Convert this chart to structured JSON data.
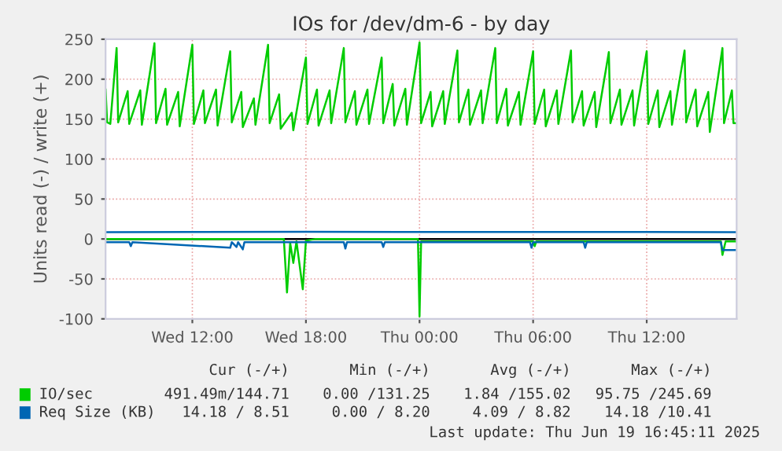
{
  "chart_data": {
    "type": "line",
    "title": "IOs for /dev/dm-6 - by day",
    "ylabel": "Units read (-) / write (+)",
    "xlim": [
      "2025-06-18T07:25",
      "2025-06-19T16:45"
    ],
    "ylim": [
      -100,
      250
    ],
    "xticks": [
      {
        "value": "2025-06-18T12:00",
        "label": "Wed 12:00"
      },
      {
        "value": "2025-06-18T18:00",
        "label": "Wed 18:00"
      },
      {
        "value": "2025-06-19T00:00",
        "label": "Thu 00:00"
      },
      {
        "value": "2025-06-19T06:00",
        "label": "Thu 06:00"
      },
      {
        "value": "2025-06-19T12:00",
        "label": "Thu 12:00"
      }
    ],
    "yticks": [
      -100,
      -50,
      0,
      50,
      100,
      150,
      200,
      250
    ],
    "grid": true,
    "legend": "bottom",
    "ref_lines": [
      {
        "axis": "y",
        "value": 0,
        "color": "#000000"
      }
    ],
    "series": [
      {
        "name": "IO/sec",
        "color": "#00cc00",
        "x": [
          "2025-06-18T07:25",
          "2025-06-18T07:30",
          "2025-06-18T07:40",
          "2025-06-18T08:00",
          "2025-06-18T08:05",
          "2025-06-18T08:35",
          "2025-06-18T08:40",
          "2025-06-18T09:15",
          "2025-06-18T09:20",
          "2025-06-18T10:00",
          "2025-06-18T10:05",
          "2025-06-18T10:35",
          "2025-06-18T10:40",
          "2025-06-18T11:15",
          "2025-06-18T11:20",
          "2025-06-18T12:00",
          "2025-06-18T12:05",
          "2025-06-18T12:35",
          "2025-06-18T12:40",
          "2025-06-18T13:15",
          "2025-06-18T13:20",
          "2025-06-18T14:00",
          "2025-06-18T14:05",
          "2025-06-18T14:35",
          "2025-06-18T14:40",
          "2025-06-18T15:15",
          "2025-06-18T15:20",
          "2025-06-18T16:00",
          "2025-06-18T16:05",
          "2025-06-18T16:35",
          "2025-06-18T16:40",
          "2025-06-18T17:15",
          "2025-06-18T17:20",
          "2025-06-18T18:00",
          "2025-06-18T18:05",
          "2025-06-18T18:35",
          "2025-06-18T18:40",
          "2025-06-18T19:15",
          "2025-06-18T19:20",
          "2025-06-18T20:00",
          "2025-06-18T20:05",
          "2025-06-18T20:35",
          "2025-06-18T20:40",
          "2025-06-18T21:15",
          "2025-06-18T21:20",
          "2025-06-18T22:00",
          "2025-06-18T22:05",
          "2025-06-18T22:35",
          "2025-06-18T22:40",
          "2025-06-18T23:15",
          "2025-06-18T23:20",
          "2025-06-19T00:00",
          "2025-06-19T00:05",
          "2025-06-19T00:35",
          "2025-06-19T00:40",
          "2025-06-19T01:15",
          "2025-06-19T01:20",
          "2025-06-19T02:00",
          "2025-06-19T02:05",
          "2025-06-19T02:35",
          "2025-06-19T02:40",
          "2025-06-19T03:15",
          "2025-06-19T03:20",
          "2025-06-19T04:00",
          "2025-06-19T04:05",
          "2025-06-19T04:35",
          "2025-06-19T04:40",
          "2025-06-19T05:15",
          "2025-06-19T05:20",
          "2025-06-19T06:00",
          "2025-06-19T06:05",
          "2025-06-19T06:35",
          "2025-06-19T06:40",
          "2025-06-19T07:15",
          "2025-06-19T07:20",
          "2025-06-19T08:00",
          "2025-06-19T08:05",
          "2025-06-19T08:35",
          "2025-06-19T08:40",
          "2025-06-19T09:15",
          "2025-06-19T09:20",
          "2025-06-19T10:00",
          "2025-06-19T10:05",
          "2025-06-19T10:35",
          "2025-06-19T10:40",
          "2025-06-19T11:15",
          "2025-06-19T11:20",
          "2025-06-19T12:00",
          "2025-06-19T12:05",
          "2025-06-19T12:35",
          "2025-06-19T12:40",
          "2025-06-19T13:15",
          "2025-06-19T13:20",
          "2025-06-19T14:00",
          "2025-06-19T14:05",
          "2025-06-19T14:35",
          "2025-06-19T14:40",
          "2025-06-19T15:15",
          "2025-06-19T15:20",
          "2025-06-19T16:00",
          "2025-06-19T16:05",
          "2025-06-19T16:30",
          "2025-06-19T16:35",
          "2025-06-19T16:45"
        ],
        "values": [
          187,
          146,
          144,
          239,
          146,
          185,
          144,
          186,
          143,
          245,
          145,
          188,
          143,
          184,
          141,
          243,
          144,
          186,
          145,
          187,
          142,
          235,
          146,
          184,
          140,
          176,
          143,
          243,
          145,
          181,
          138,
          158,
          136,
          227,
          144,
          187,
          142,
          186,
          145,
          239,
          146,
          185,
          143,
          187,
          144,
          227,
          145,
          194,
          142,
          188,
          143,
          246,
          145,
          184,
          141,
          185,
          144,
          236,
          146,
          187,
          143,
          186,
          145,
          239,
          145,
          188,
          142,
          184,
          143,
          235,
          144,
          187,
          141,
          186,
          144,
          236,
          146,
          185,
          142,
          184,
          140,
          234,
          145,
          187,
          143,
          186,
          142,
          235,
          144,
          186,
          140,
          185,
          143,
          236,
          146,
          187,
          141,
          184,
          134,
          239,
          145,
          186,
          145,
          145
        ]
      },
      {
        "color": "#00cc00",
        "x": [
          "2025-06-18T07:25",
          "2025-06-18T16:50",
          "2025-06-18T17:00",
          "2025-06-18T17:10",
          "2025-06-18T17:20",
          "2025-06-18T17:30",
          "2025-06-18T17:50",
          "2025-06-18T18:00",
          "2025-06-18T18:30",
          "2025-06-18T23:55",
          "2025-06-19T00:00",
          "2025-06-19T00:05",
          "2025-06-19T06:00",
          "2025-06-19T06:05",
          "2025-06-19T06:10",
          "2025-06-19T15:55",
          "2025-06-19T16:00",
          "2025-06-19T16:10",
          "2025-06-19T16:45"
        ],
        "values": [
          0,
          0,
          -67,
          -5,
          -30,
          -3,
          -63,
          -2,
          0,
          0,
          -97,
          -3,
          -3,
          -9,
          -3,
          -3,
          -20,
          -3,
          -3
        ]
      },
      {
        "name": "Req Size (KB)",
        "color": "#0066b3",
        "x": [
          "2025-06-18T07:25",
          "2025-06-18T12:00",
          "2025-06-18T18:00",
          "2025-06-19T00:00",
          "2025-06-19T06:00",
          "2025-06-19T12:00",
          "2025-06-19T16:40",
          "2025-06-19T16:45"
        ],
        "values": [
          8.6,
          8.7,
          8.9,
          8.8,
          8.8,
          8.8,
          8.6,
          8.5
        ]
      },
      {
        "color": "#0066b3",
        "x": [
          "2025-06-18T07:25",
          "2025-06-18T08:40",
          "2025-06-18T08:45",
          "2025-06-18T08:50",
          "2025-06-18T14:00",
          "2025-06-18T14:05",
          "2025-06-18T14:20",
          "2025-06-18T14:25",
          "2025-06-18T14:40",
          "2025-06-18T14:45",
          "2025-06-18T20:00",
          "2025-06-18T20:05",
          "2025-06-18T20:10",
          "2025-06-18T22:00",
          "2025-06-18T22:05",
          "2025-06-18T22:10",
          "2025-06-19T05:50",
          "2025-06-19T05:55",
          "2025-06-19T06:00",
          "2025-06-19T08:40",
          "2025-06-19T08:45",
          "2025-06-19T08:50",
          "2025-06-19T15:55",
          "2025-06-19T16:00",
          "2025-06-19T16:45"
        ],
        "values": [
          -4,
          -4,
          -9,
          -4,
          -11,
          -4,
          -10,
          -4,
          -13,
          -4,
          -4,
          -12,
          -4,
          -4,
          -10,
          -4,
          -4,
          -11,
          -4,
          -4,
          -11,
          -4,
          -4,
          -14,
          -14
        ]
      }
    ],
    "annotations": [
      "Cur (-/+)",
      "Min (-/+)",
      "Avg (-/+)",
      "Max (-/+)",
      "491.49m/144.71",
      "0.00 /131.25",
      "1.84 /155.02",
      "95.75 /245.69",
      "14.18 / 8.51",
      "0.00 / 8.20",
      "4.09 / 8.82",
      "14.18 /10.41",
      "Last update: Thu Jun 19 16:45:11 2025"
    ]
  }
}
